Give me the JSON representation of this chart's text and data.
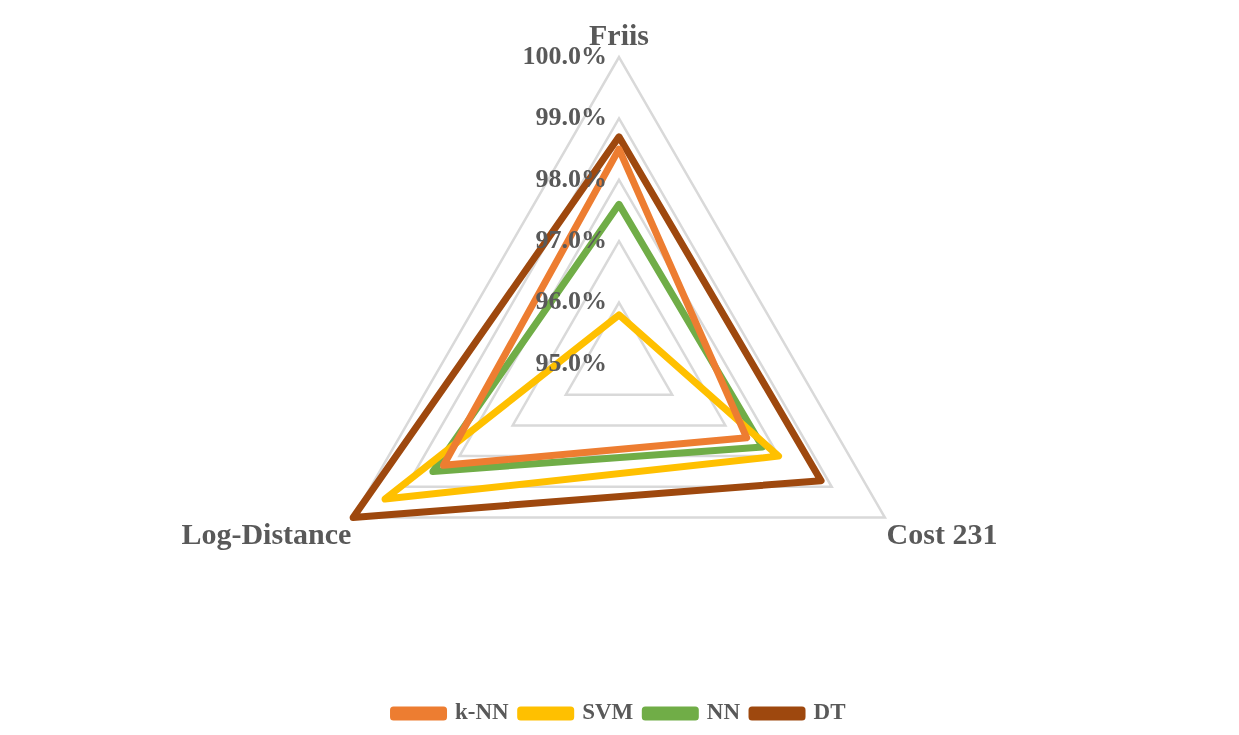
{
  "chart_data": {
    "type": "radar",
    "categories": [
      "Friis",
      "Cost 231",
      "Log-Distance"
    ],
    "series": [
      {
        "name": "k-NN",
        "color": "#ed7d31",
        "values": [
          98.5,
          97.4,
          98.3
        ]
      },
      {
        "name": "SVM",
        "color": "#ffc000",
        "values": [
          95.8,
          98.0,
          99.4
        ]
      },
      {
        "name": "NN",
        "color": "#70ad47",
        "values": [
          97.6,
          97.7,
          98.5
        ]
      },
      {
        "name": "DT",
        "color": "#9e480e",
        "values": [
          98.7,
          98.8,
          100.0
        ]
      }
    ],
    "ylim": [
      95,
      100
    ],
    "yticks": [
      {
        "value": 95,
        "label": "95.0%"
      },
      {
        "value": 96,
        "label": "96.0%"
      },
      {
        "value": 97,
        "label": "97.0%"
      },
      {
        "value": 98,
        "label": "98.0%"
      },
      {
        "value": 99,
        "label": "99.0%"
      },
      {
        "value": 100,
        "label": "100.0%"
      }
    ],
    "grid": true,
    "legend": "bottom",
    "marker": "none",
    "line_style": "solid"
  }
}
